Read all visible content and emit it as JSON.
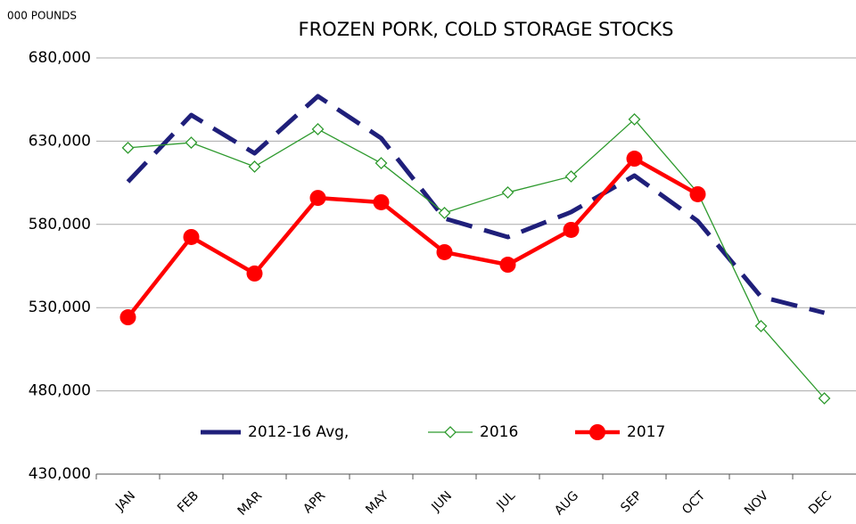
{
  "chart_data": {
    "type": "line",
    "title": "FROZEN PORK, COLD STORAGE STOCKS",
    "y_axis_label": "000 POUNDS",
    "categories": [
      "JAN",
      "FEB",
      "MAR",
      "APR",
      "MAY",
      "JUN",
      "JUL",
      "AUG",
      "SEP",
      "OCT",
      "NOV",
      "DEC"
    ],
    "series": [
      {
        "name": "2012-16 Avg,",
        "color": "#1f1f7a",
        "marker": "none",
        "dashed": true,
        "values": [
          605600,
          645700,
          622700,
          657000,
          631800,
          583600,
          572400,
          587400,
          609300,
          582000,
          536500,
          526900
        ]
      },
      {
        "name": "2016",
        "color": "#2e9a2e",
        "marker": "diamond",
        "dashed": false,
        "values": [
          626000,
          629100,
          614700,
          637200,
          616800,
          586900,
          599200,
          608800,
          643100,
          599000,
          518900,
          475500
        ]
      },
      {
        "name": "2017",
        "color": "#ff0000",
        "marker": "circle",
        "dashed": false,
        "values": [
          524200,
          572400,
          550500,
          595900,
          593300,
          563300,
          555800,
          576700,
          619500,
          598100,
          null,
          null
        ]
      }
    ],
    "ylim": [
      430000,
      680000
    ],
    "yticks": [
      {
        "value": 430000,
        "label": "430,000"
      },
      {
        "value": 480000,
        "label": "480,000"
      },
      {
        "value": 530000,
        "label": "530,000"
      },
      {
        "value": 580000,
        "label": "580,000"
      },
      {
        "value": 630000,
        "label": "630,000"
      },
      {
        "value": 680000,
        "label": "680,000"
      }
    ],
    "grid": true,
    "legend_position": "bottom"
  }
}
